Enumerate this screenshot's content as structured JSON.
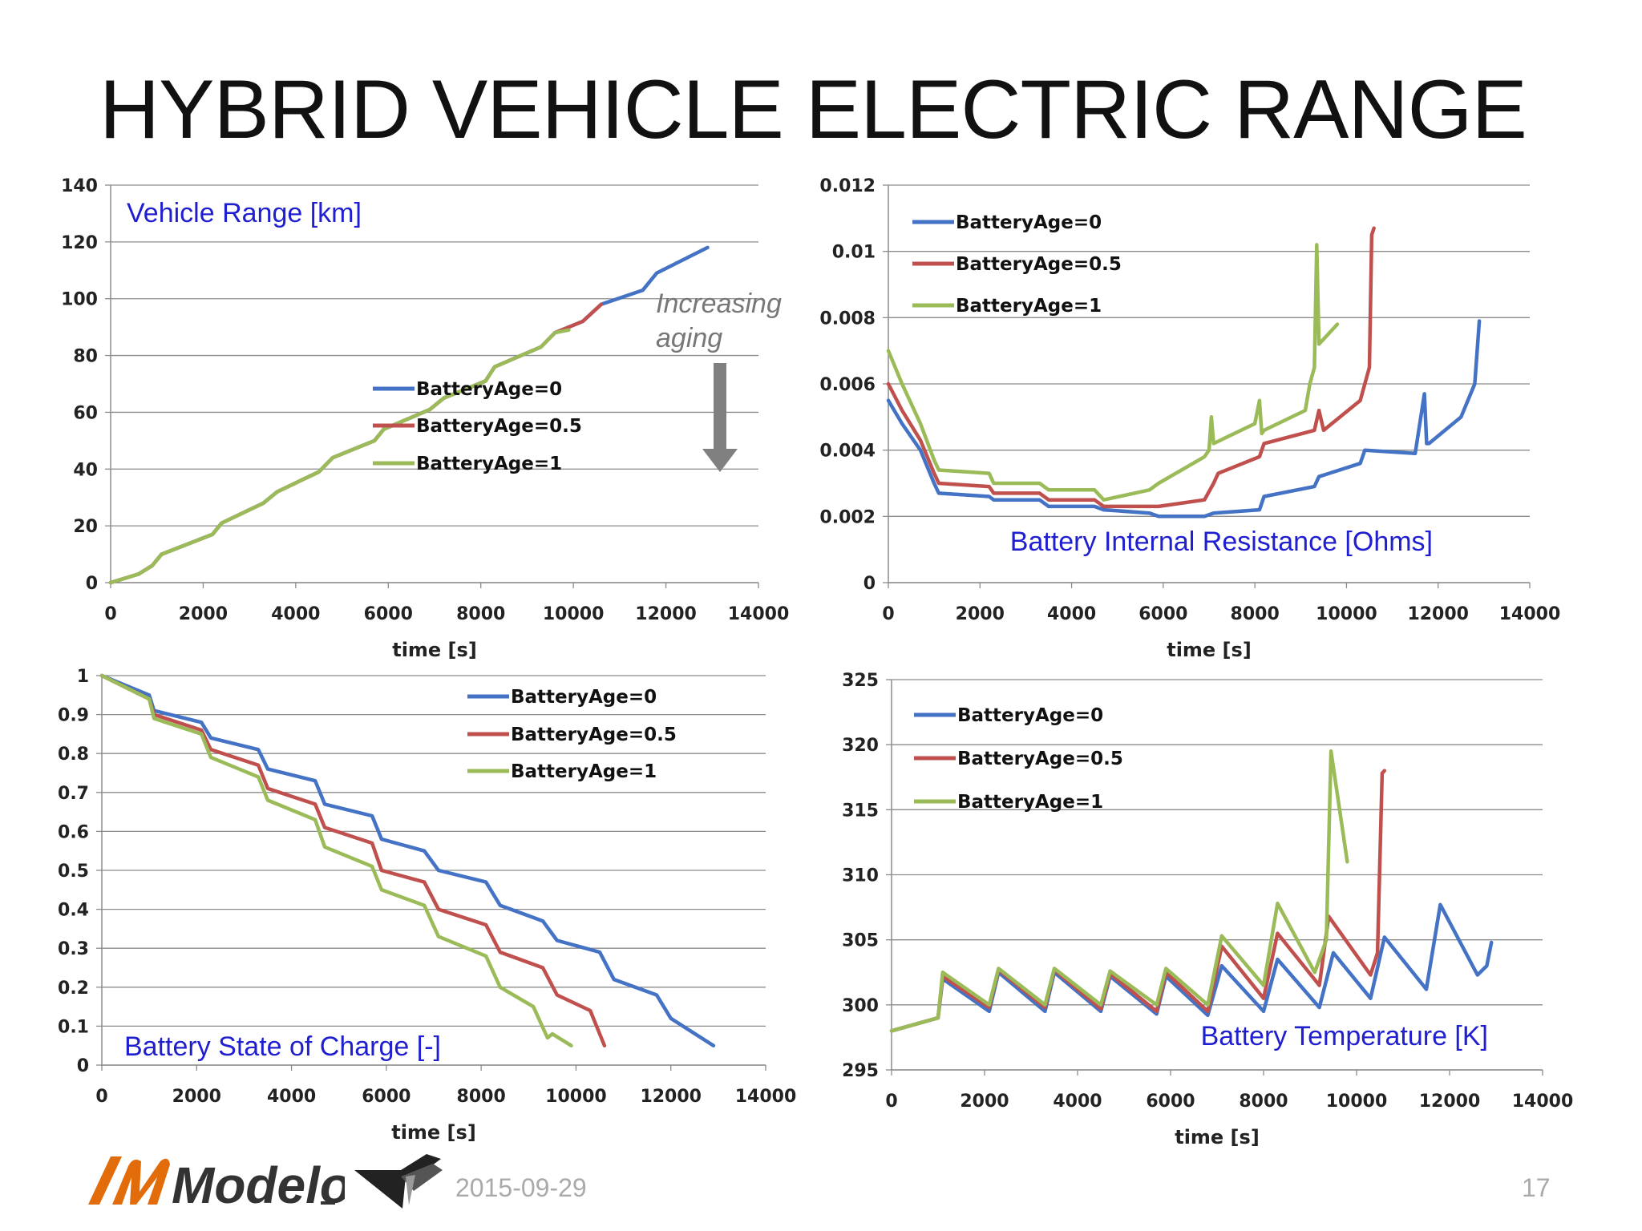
{
  "title": "HYBRID VEHICLE ELECTRIC RANGE",
  "footer": {
    "date": "2015-09-29",
    "page": "17",
    "logo_text": "Modelon"
  },
  "colors": {
    "age0": "#4472c4",
    "age05": "#c0504d",
    "age1": "#9bbb59",
    "title": "#1f1fd0",
    "arrow": "#808080"
  },
  "annotation": {
    "line1": "Increasing",
    "line2": "aging"
  },
  "chart_data": [
    {
      "id": "range",
      "type": "line",
      "title": "Vehicle Range [km]",
      "xlabel": "time [s]",
      "ylabel": "",
      "xlim": [
        0,
        14000
      ],
      "ylim": [
        0,
        140
      ],
      "xticks": [
        "0",
        "2000",
        "4000",
        "6000",
        "8000",
        "10000",
        "12000",
        "14000"
      ],
      "yticks": [
        "0",
        "20",
        "40",
        "60",
        "80",
        "100",
        "120",
        "140"
      ],
      "legend": [
        "BatteryAge=0",
        "BatteryAge=0.5",
        "BatteryAge=1"
      ],
      "series": [
        {
          "name": "BatteryAge=0",
          "color_key": "age0",
          "x": [
            0,
            600,
            900,
            1100,
            2200,
            2400,
            3300,
            3600,
            4500,
            4800,
            5700,
            5900,
            6900,
            7200,
            8100,
            8300,
            9300,
            9600,
            10200,
            10600,
            11500,
            11800,
            12900
          ],
          "y": [
            0,
            3,
            6,
            10,
            17,
            21,
            28,
            32,
            39,
            44,
            50,
            54,
            61,
            65,
            71,
            76,
            83,
            88,
            92,
            98,
            103,
            109,
            118
          ]
        },
        {
          "name": "BatteryAge=0.5",
          "color_key": "age05",
          "x": [
            0,
            600,
            900,
            1100,
            2200,
            2400,
            3300,
            3600,
            4500,
            4800,
            5700,
            5900,
            6900,
            7200,
            8100,
            8300,
            9300,
            9600,
            10200,
            10600
          ],
          "y": [
            0,
            3,
            6,
            10,
            17,
            21,
            28,
            32,
            39,
            44,
            50,
            54,
            61,
            65,
            71,
            76,
            83,
            88,
            92,
            98
          ]
        },
        {
          "name": "BatteryAge=1",
          "color_key": "age1",
          "x": [
            0,
            600,
            900,
            1100,
            2200,
            2400,
            3300,
            3600,
            4500,
            4800,
            5700,
            5900,
            6900,
            7200,
            8100,
            8300,
            9300,
            9600,
            9900
          ],
          "y": [
            0,
            3,
            6,
            10,
            17,
            21,
            28,
            32,
            39,
            44,
            50,
            54,
            61,
            65,
            71,
            76,
            83,
            88,
            89
          ]
        }
      ]
    },
    {
      "id": "resistance",
      "type": "line",
      "title": "Battery Internal Resistance [Ohms]",
      "xlabel": "time [s]",
      "ylabel": "",
      "xlim": [
        0,
        14000
      ],
      "ylim": [
        0,
        0.012
      ],
      "xticks": [
        "0",
        "2000",
        "4000",
        "6000",
        "8000",
        "10000",
        "12000",
        "14000"
      ],
      "yticks": [
        "0",
        "0.002",
        "0.004",
        "0.006",
        "0.008",
        "0.01",
        "0.012"
      ],
      "legend": [
        "BatteryAge=0",
        "BatteryAge=0.5",
        "BatteryAge=1"
      ],
      "series": [
        {
          "name": "BatteryAge=0",
          "color_key": "age0",
          "x": [
            0,
            300,
            700,
            1000,
            1100,
            2200,
            2300,
            3300,
            3500,
            4500,
            4700,
            5700,
            5900,
            6900,
            7100,
            8100,
            8200,
            9300,
            9400,
            10300,
            10400,
            11500,
            11700,
            11750,
            11800,
            12500,
            12800,
            12900
          ],
          "y": [
            0.0055,
            0.0048,
            0.004,
            0.003,
            0.0027,
            0.0026,
            0.0025,
            0.0025,
            0.0023,
            0.0023,
            0.0022,
            0.0021,
            0.002,
            0.002,
            0.0021,
            0.0022,
            0.0026,
            0.0029,
            0.0032,
            0.0036,
            0.004,
            0.0039,
            0.0057,
            0.0042,
            0.0042,
            0.005,
            0.006,
            0.0079
          ]
        },
        {
          "name": "BatteryAge=0.5",
          "color_key": "age05",
          "x": [
            0,
            300,
            700,
            1000,
            1100,
            2200,
            2300,
            3300,
            3500,
            4500,
            4700,
            5700,
            5900,
            6900,
            7100,
            7200,
            8100,
            8200,
            9300,
            9400,
            9500,
            10300,
            10500,
            10550,
            10600
          ],
          "y": [
            0.006,
            0.0052,
            0.0043,
            0.0033,
            0.003,
            0.0029,
            0.0027,
            0.0027,
            0.0025,
            0.0025,
            0.0023,
            0.0023,
            0.0023,
            0.0025,
            0.003,
            0.0033,
            0.0038,
            0.0042,
            0.0046,
            0.0052,
            0.0046,
            0.0055,
            0.0065,
            0.0105,
            0.0107
          ]
        },
        {
          "name": "BatteryAge=1",
          "color_key": "age1",
          "x": [
            0,
            300,
            700,
            1000,
            1100,
            2200,
            2300,
            3300,
            3500,
            4500,
            4700,
            5700,
            5900,
            6900,
            7000,
            7050,
            7100,
            8000,
            8100,
            8150,
            8200,
            9100,
            9200,
            9300,
            9350,
            9400,
            9800
          ],
          "y": [
            0.007,
            0.006,
            0.0048,
            0.0037,
            0.0034,
            0.0033,
            0.003,
            0.003,
            0.0028,
            0.0028,
            0.0025,
            0.0028,
            0.003,
            0.0038,
            0.004,
            0.005,
            0.0042,
            0.0048,
            0.0055,
            0.0045,
            0.0046,
            0.0052,
            0.006,
            0.0065,
            0.0102,
            0.0072,
            0.0078
          ]
        }
      ]
    },
    {
      "id": "soc",
      "type": "line",
      "title": "Battery State of Charge [-]",
      "xlabel": "time [s]",
      "ylabel": "",
      "xlim": [
        0,
        14000
      ],
      "ylim": [
        0,
        1
      ],
      "xticks": [
        "0",
        "2000",
        "4000",
        "6000",
        "8000",
        "10000",
        "12000",
        "14000"
      ],
      "yticks": [
        "0",
        "0.1",
        "0.2",
        "0.3",
        "0.4",
        "0.5",
        "0.6",
        "0.7",
        "0.8",
        "0.9",
        "1"
      ],
      "legend": [
        "BatteryAge=0",
        "BatteryAge=0.5",
        "BatteryAge=1"
      ],
      "series": [
        {
          "name": "BatteryAge=0",
          "color_key": "age0",
          "x": [
            0,
            1000,
            1100,
            2100,
            2300,
            3300,
            3500,
            4500,
            4700,
            5700,
            5900,
            6800,
            7100,
            8100,
            8400,
            9300,
            9600,
            10500,
            10800,
            11700,
            12000,
            12900
          ],
          "y": [
            1,
            0.95,
            0.91,
            0.88,
            0.84,
            0.81,
            0.76,
            0.73,
            0.67,
            0.64,
            0.58,
            0.55,
            0.5,
            0.47,
            0.41,
            0.37,
            0.32,
            0.29,
            0.22,
            0.18,
            0.12,
            0.05
          ]
        },
        {
          "name": "BatteryAge=0.5",
          "color_key": "age05",
          "x": [
            0,
            1000,
            1100,
            2100,
            2300,
            3300,
            3500,
            4500,
            4700,
            5700,
            5900,
            6800,
            7100,
            8100,
            8400,
            9300,
            9600,
            10300,
            10600
          ],
          "y": [
            1,
            0.94,
            0.9,
            0.86,
            0.81,
            0.77,
            0.71,
            0.67,
            0.61,
            0.57,
            0.5,
            0.47,
            0.4,
            0.36,
            0.29,
            0.25,
            0.18,
            0.14,
            0.05
          ]
        },
        {
          "name": "BatteryAge=1",
          "color_key": "age1",
          "x": [
            0,
            1000,
            1100,
            2100,
            2300,
            3300,
            3500,
            4500,
            4700,
            5700,
            5900,
            6800,
            7100,
            8100,
            8400,
            9100,
            9400,
            9500,
            9900
          ],
          "y": [
            1,
            0.94,
            0.89,
            0.85,
            0.79,
            0.74,
            0.68,
            0.63,
            0.56,
            0.51,
            0.45,
            0.41,
            0.33,
            0.28,
            0.2,
            0.15,
            0.07,
            0.08,
            0.05
          ]
        }
      ]
    },
    {
      "id": "temperature",
      "type": "line",
      "title": "Battery Temperature [K]",
      "xlabel": "time [s]",
      "ylabel": "",
      "xlim": [
        0,
        14000
      ],
      "ylim": [
        295,
        325
      ],
      "xticks": [
        "0",
        "2000",
        "4000",
        "6000",
        "8000",
        "10000",
        "12000",
        "14000"
      ],
      "yticks": [
        "295",
        "300",
        "305",
        "310",
        "315",
        "320",
        "325"
      ],
      "legend": [
        "BatteryAge=0",
        "BatteryAge=0.5",
        "BatteryAge=1"
      ],
      "series": [
        {
          "name": "BatteryAge=0",
          "color_key": "age0",
          "x": [
            0,
            500,
            1000,
            1100,
            2100,
            2300,
            3300,
            3500,
            4500,
            4700,
            5700,
            5900,
            6800,
            7100,
            8000,
            8300,
            9200,
            9500,
            10300,
            10600,
            11500,
            11800,
            12600,
            12800,
            12900
          ],
          "y": [
            298,
            298.5,
            299,
            302,
            299.5,
            302.5,
            299.5,
            302.5,
            299.5,
            302.2,
            299.3,
            302.2,
            299.2,
            303,
            299.5,
            303.5,
            299.8,
            304,
            300.5,
            305.2,
            301.2,
            307.7,
            302.3,
            303,
            304.8
          ]
        },
        {
          "name": "BatteryAge=0.5",
          "color_key": "age05",
          "x": [
            0,
            500,
            1000,
            1100,
            2100,
            2300,
            3300,
            3500,
            4500,
            4700,
            5700,
            5900,
            6800,
            7100,
            8000,
            8300,
            9200,
            9400,
            10300,
            10450,
            10550,
            10600
          ],
          "y": [
            298,
            298.5,
            299,
            302.2,
            299.8,
            302.7,
            299.8,
            302.7,
            299.7,
            302.4,
            299.5,
            302.5,
            299.5,
            304.5,
            300.5,
            305.5,
            301.5,
            306.8,
            302.3,
            304,
            317.8,
            318
          ]
        },
        {
          "name": "BatteryAge=1",
          "color_key": "age1",
          "x": [
            0,
            500,
            1000,
            1100,
            2100,
            2300,
            3300,
            3500,
            4500,
            4700,
            5700,
            5900,
            6800,
            7100,
            8000,
            8300,
            9100,
            9350,
            9450,
            9800
          ],
          "y": [
            298,
            298.5,
            299,
            302.5,
            300,
            302.8,
            300,
            302.8,
            300,
            302.6,
            300,
            302.8,
            300,
            305.3,
            301.5,
            307.8,
            302.5,
            305,
            319.5,
            311
          ]
        }
      ]
    }
  ]
}
